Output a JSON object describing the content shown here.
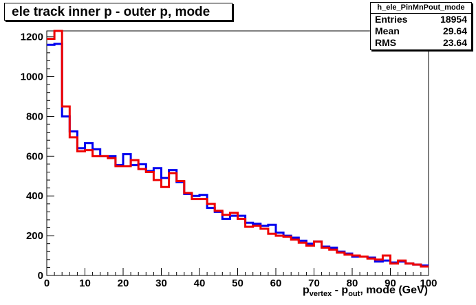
{
  "title": "ele track inner p - outer p, mode",
  "stats": {
    "name": "h_ele_PinMnPout_mode",
    "rows": [
      {
        "label": "Entries",
        "value": "18954"
      },
      {
        "label": "Mean",
        "value": "29.64"
      },
      {
        "label": "RMS",
        "value": "23.64"
      }
    ]
  },
  "xlabel": {
    "p": "p",
    "sub1": "vertex",
    "dash": " - p",
    "sub2": "out",
    "rest": ", mode (GeV)"
  },
  "colors": {
    "series_blue": "#0000ee",
    "series_red": "#ee0000"
  },
  "chart_data": {
    "type": "line",
    "step": true,
    "xlim": [
      0,
      100
    ],
    "ylim": [
      0,
      1230
    ],
    "xticks": [
      0,
      10,
      20,
      30,
      40,
      50,
      60,
      70,
      80,
      90,
      100
    ],
    "yticks": [
      0,
      200,
      400,
      600,
      800,
      1000,
      1200
    ],
    "bin_edges": [
      0,
      2,
      4,
      6,
      8,
      10,
      12,
      14,
      16,
      18,
      20,
      22,
      24,
      26,
      28,
      30,
      32,
      34,
      36,
      38,
      40,
      42,
      44,
      46,
      48,
      50,
      52,
      54,
      56,
      58,
      60,
      62,
      64,
      66,
      68,
      70,
      72,
      74,
      76,
      78,
      80,
      82,
      84,
      86,
      88,
      90,
      92,
      94,
      96,
      98,
      100
    ],
    "series": [
      {
        "color": "blue",
        "values": [
          1160,
          1165,
          800,
          725,
          640,
          665,
          635,
          600,
          600,
          555,
          610,
          555,
          560,
          525,
          540,
          490,
          530,
          470,
          410,
          400,
          405,
          340,
          320,
          285,
          300,
          300,
          265,
          260,
          250,
          255,
          215,
          200,
          190,
          175,
          160,
          170,
          145,
          140,
          120,
          110,
          95,
          95,
          90,
          70,
          75,
          65,
          70,
          60,
          55,
          50
        ]
      },
      {
        "color": "red",
        "values": [
          1190,
          1230,
          850,
          695,
          625,
          630,
          600,
          600,
          590,
          550,
          550,
          580,
          535,
          520,
          480,
          445,
          515,
          475,
          415,
          385,
          385,
          360,
          325,
          305,
          315,
          285,
          245,
          250,
          235,
          210,
          200,
          195,
          180,
          165,
          150,
          170,
          140,
          130,
          115,
          105,
          100,
          95,
          85,
          80,
          100,
          60,
          75,
          60,
          55,
          45
        ]
      }
    ]
  }
}
